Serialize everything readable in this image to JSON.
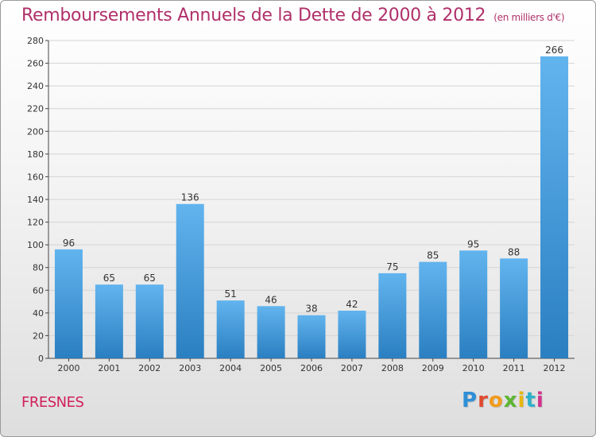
{
  "title": {
    "main": "Remboursements Annuels de la Dette de 2000 à 2012",
    "unit": "(en milliers d'€)"
  },
  "commune": "FRESNES",
  "brand": {
    "text": "Proxiti",
    "letter_colors": [
      "#2f8fd6",
      "#e04a2f",
      "#f29b1d",
      "#5cb531",
      "#e8b70f",
      "#2fb0c9",
      "#d1318c"
    ]
  },
  "colors": {
    "bar_top": "#62b4ee",
    "bar_bottom": "#2a7fc1",
    "title": "#b0306a",
    "commune": "#d11f5a"
  },
  "chart_data": {
    "type": "bar",
    "title": "Remboursements Annuels de la Dette de 2000 à 2012",
    "ylabel": "",
    "xlabel": "",
    "categories": [
      "2000",
      "2001",
      "2002",
      "2003",
      "2004",
      "2005",
      "2006",
      "2007",
      "2008",
      "2009",
      "2010",
      "2011",
      "2012"
    ],
    "values": [
      96,
      65,
      65,
      136,
      51,
      46,
      38,
      42,
      75,
      85,
      95,
      88,
      266
    ],
    "ylim": [
      0,
      280
    ],
    "yticks": [
      0,
      20,
      40,
      60,
      80,
      100,
      120,
      140,
      160,
      180,
      200,
      220,
      240,
      260,
      280
    ],
    "grid": true,
    "legend": "none"
  }
}
